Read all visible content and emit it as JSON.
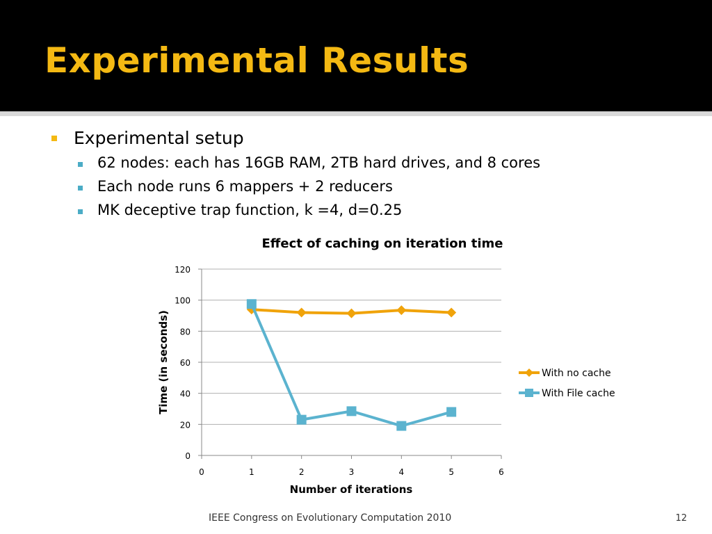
{
  "slide": {
    "title": "Experimental Results",
    "footer": "IEEE Congress on Evolutionary Computation 2010",
    "page_number": "12",
    "bullets": {
      "main": "Experimental setup",
      "subs": [
        "62 nodes: each has 16GB RAM, 2TB hard drives, and 8 cores",
        "Each node runs 6 mappers + 2 reducers",
        "MK deceptive trap function, k =4, d=0.25"
      ]
    },
    "colors": {
      "title": "#f4b913",
      "title_bar": "#000000",
      "main_bullet": "#f4b913",
      "sub_bullet": "#4bacc6"
    }
  },
  "chart_data": {
    "type": "line",
    "title": "Effect of caching on iteration time",
    "xlabel": "Number of iterations",
    "ylabel": "Time (in seconds)",
    "xlim": [
      0,
      6
    ],
    "ylim": [
      0,
      120
    ],
    "x_ticks": [
      0,
      1,
      2,
      3,
      4,
      5,
      6
    ],
    "y_ticks": [
      0,
      20,
      40,
      60,
      80,
      100,
      120
    ],
    "grid": true,
    "legend_position": "right",
    "series": [
      {
        "name": "With no cache",
        "marker": "diamond",
        "color": "#f0a30a",
        "x": [
          1,
          2,
          3,
          4,
          5
        ],
        "y": [
          94,
          92,
          91.5,
          93.5,
          92
        ]
      },
      {
        "name": "With File cache",
        "marker": "square",
        "color": "#5bb3cf",
        "x": [
          1,
          2,
          3,
          4,
          5
        ],
        "y": [
          97.5,
          23,
          28.5,
          19,
          28
        ]
      }
    ]
  }
}
